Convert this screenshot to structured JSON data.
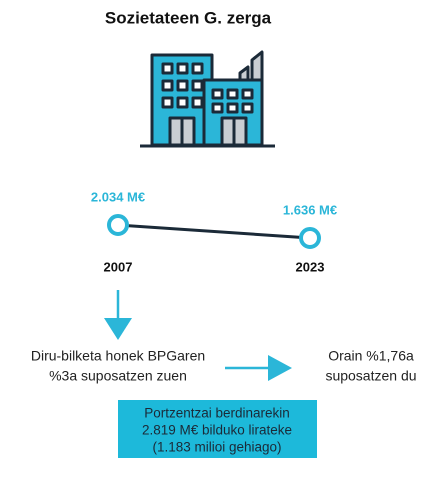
{
  "title": "Sozietateen G. zerga",
  "points": [
    {
      "value_label": "2.034 M€",
      "year": "2007"
    },
    {
      "value_label": "1.636 M€",
      "year": "2023"
    }
  ],
  "before": [
    "Diru-bilketa honek BPGaren",
    "%3a suposatzen zuen"
  ],
  "now": [
    "Orain %1,76a",
    "suposatzen du"
  ],
  "note": [
    "Portzentzai berdinarekin",
    "2.819 M€ bilduko lirateke",
    "(1.183 milioi gehiago)"
  ]
}
